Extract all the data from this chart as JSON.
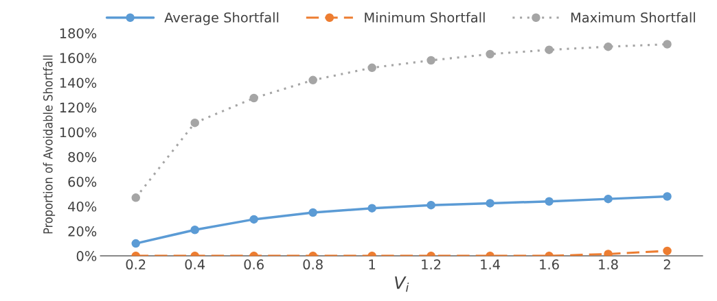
{
  "chart_data": {
    "type": "line",
    "xlabel": "V$_{i}$",
    "ylabel": "Proportion of Avoidable Shortfall",
    "categories": [
      "0.2",
      "0.4",
      "0.6",
      "0.8",
      "1",
      "1.2",
      "1.4",
      "1.6",
      "1.8",
      "2"
    ],
    "series": [
      {
        "name": "Average Shortfall",
        "color": "#5b9bd5",
        "line_style": "solid",
        "values": [
          10,
          21,
          29.5,
          35,
          38.5,
          41,
          42.5,
          44,
          46,
          48
        ]
      },
      {
        "name": "Minimum Shortfall",
        "color": "#ed7d31",
        "line_style": "dashed",
        "values": [
          0,
          0,
          0,
          0,
          0,
          0,
          0,
          0,
          1.5,
          4
        ]
      },
      {
        "name": "Maximum Shortfall",
        "color": "#a5a5a5",
        "line_style": "dotted",
        "values": [
          47,
          107.5,
          127.5,
          142,
          152,
          158,
          163,
          166.5,
          169,
          171
        ]
      }
    ],
    "ylim": [
      0,
      180
    ],
    "yticks": [
      {
        "value": 0,
        "label": "0%"
      },
      {
        "value": 20,
        "label": "20%"
      },
      {
        "value": 40,
        "label": "40%"
      },
      {
        "value": 60,
        "label": "60%"
      },
      {
        "value": 80,
        "label": "80%"
      },
      {
        "value": 100,
        "label": "100%"
      },
      {
        "value": 120,
        "label": "120%"
      },
      {
        "value": 140,
        "label": "140%"
      },
      {
        "value": 160,
        "label": "160%"
      },
      {
        "value": 180,
        "label": "180%"
      }
    ],
    "marker": "circle",
    "grid": false,
    "legend": "top"
  }
}
